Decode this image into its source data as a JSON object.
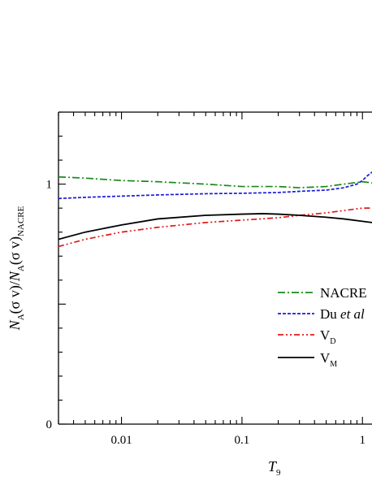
{
  "chart_data": {
    "type": "line",
    "x_scale": "log",
    "x_range": [
      0.003,
      1.2
    ],
    "y_range": [
      0,
      1.3
    ],
    "x_ticks": [
      {
        "value": 0.01,
        "label": "0.01"
      },
      {
        "value": 0.1,
        "label": "0.1"
      },
      {
        "value": 1,
        "label": "1"
      }
    ],
    "y_ticks": [
      {
        "value": 0,
        "label": "0"
      },
      {
        "value": 1,
        "label": "1"
      }
    ],
    "xlabel": {
      "main": "T",
      "sub": "9"
    },
    "ylabel": {
      "n1": "N",
      "s1": "A",
      "m1": "(σ v)/",
      "n2": "N",
      "s2": "A",
      "m2": "(σ v)",
      "s3": "NACRE"
    },
    "legend_position": "center-right",
    "series": [
      {
        "id": "nacre",
        "legend_main": "NACRE",
        "legend_italic": "",
        "legend_sub": "",
        "color": "#1a8a1a",
        "dash": "9,3,2,3",
        "x": [
          0.003,
          0.005,
          0.01,
          0.02,
          0.05,
          0.1,
          0.2,
          0.3,
          0.5,
          0.7,
          1.0,
          1.2
        ],
        "y": [
          1.03,
          1.025,
          1.015,
          1.01,
          1.0,
          0.99,
          0.99,
          0.985,
          0.99,
          1.0,
          1.01,
          1.005
        ]
      },
      {
        "id": "du",
        "legend_main": "Du ",
        "legend_italic": "et al",
        "legend_sub": "",
        "color": "#1a1adb",
        "dash": "4,2",
        "x": [
          0.003,
          0.005,
          0.01,
          0.02,
          0.05,
          0.1,
          0.2,
          0.3,
          0.5,
          0.7,
          0.9,
          1.0,
          1.1,
          1.2
        ],
        "y": [
          0.94,
          0.945,
          0.95,
          0.955,
          0.96,
          0.962,
          0.965,
          0.97,
          0.975,
          0.985,
          1.0,
          1.015,
          1.035,
          1.05
        ]
      },
      {
        "id": "vd",
        "legend_main": "V",
        "legend_italic": "",
        "legend_sub": "D",
        "color": "#e01a1a",
        "dash": "7,3,2,3,2,3",
        "x": [
          0.003,
          0.005,
          0.01,
          0.02,
          0.05,
          0.1,
          0.2,
          0.3,
          0.5,
          0.7,
          1.0,
          1.2
        ],
        "y": [
          0.74,
          0.77,
          0.8,
          0.82,
          0.84,
          0.85,
          0.86,
          0.87,
          0.88,
          0.89,
          0.9,
          0.9
        ]
      },
      {
        "id": "vm",
        "legend_main": "V",
        "legend_italic": "",
        "legend_sub": "M",
        "color": "#000000",
        "dash": "",
        "x": [
          0.003,
          0.005,
          0.01,
          0.02,
          0.05,
          0.1,
          0.15,
          0.2,
          0.3,
          0.5,
          0.7,
          1.0,
          1.2
        ],
        "y": [
          0.77,
          0.8,
          0.83,
          0.855,
          0.87,
          0.875,
          0.877,
          0.875,
          0.87,
          0.862,
          0.855,
          0.845,
          0.84
        ]
      }
    ]
  }
}
